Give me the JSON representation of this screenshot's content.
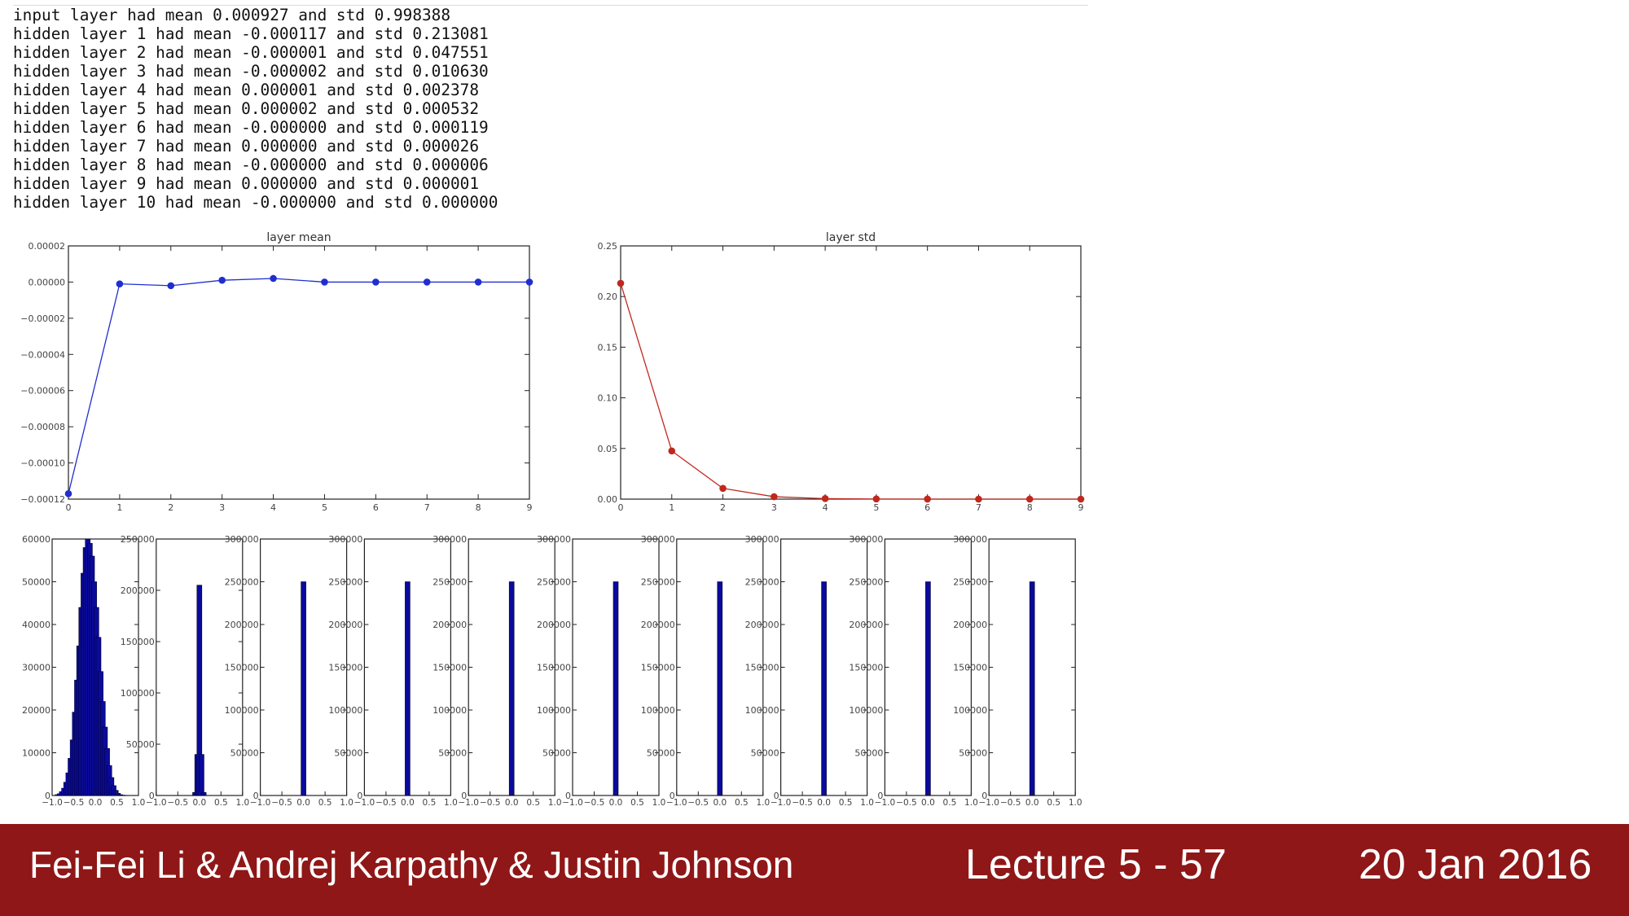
{
  "console": {
    "lines": [
      "input layer had mean 0.000927 and std 0.998388",
      "hidden layer 1 had mean -0.000117 and std 0.213081",
      "hidden layer 2 had mean -0.000001 and std 0.047551",
      "hidden layer 3 had mean -0.000002 and std 0.010630",
      "hidden layer 4 had mean 0.000001 and std 0.002378",
      "hidden layer 5 had mean 0.000002 and std 0.000532",
      "hidden layer 6 had mean -0.000000 and std 0.000119",
      "hidden layer 7 had mean 0.000000 and std 0.000026",
      "hidden layer 8 had mean -0.000000 and std 0.000006",
      "hidden layer 9 had mean 0.000000 and std 0.000001",
      "hidden layer 10 had mean -0.000000 and std 0.000000"
    ]
  },
  "chart_data": [
    {
      "type": "line",
      "title": "layer mean",
      "color": "#1f2fcf",
      "x": [
        0,
        1,
        2,
        3,
        4,
        5,
        6,
        7,
        8,
        9
      ],
      "y": [
        -0.000117,
        -1e-06,
        -2e-06,
        1e-06,
        2e-06,
        0.0,
        0.0,
        0.0,
        0.0,
        0.0
      ],
      "xlim": [
        0,
        9
      ],
      "ylim": [
        -0.00012,
        2e-05
      ],
      "xticks": [
        "0",
        "1",
        "2",
        "3",
        "4",
        "5",
        "6",
        "7",
        "8",
        "9"
      ],
      "yticks": [
        "0.00002",
        "0.00000",
        "−0.00002",
        "−0.00004",
        "−0.00006",
        "−0.00008",
        "−0.00010",
        "−0.00012"
      ],
      "ytick_values": [
        2e-05,
        0.0,
        -2e-05,
        -4e-05,
        -6e-05,
        -8e-05,
        -0.0001,
        -0.00012
      ]
    },
    {
      "type": "line",
      "title": "layer std",
      "color": "#c0281e",
      "x": [
        0,
        1,
        2,
        3,
        4,
        5,
        6,
        7,
        8,
        9
      ],
      "y": [
        0.213081,
        0.047551,
        0.01063,
        0.002378,
        0.000532,
        0.000119,
        2.6e-05,
        6e-06,
        1e-06,
        0.0
      ],
      "xlim": [
        0,
        9
      ],
      "ylim": [
        0,
        0.25
      ],
      "xticks": [
        "0",
        "1",
        "2",
        "3",
        "4",
        "5",
        "6",
        "7",
        "8",
        "9"
      ],
      "yticks": [
        "0.25",
        "0.20",
        "0.15",
        "0.10",
        "0.05",
        "0.00"
      ],
      "ytick_values": [
        0.25,
        0.2,
        0.15,
        0.1,
        0.05,
        0.0
      ]
    },
    {
      "type": "bar",
      "subtype": "histograms",
      "color": "#0a0a9c",
      "xlim": [
        -1.0,
        1.0
      ],
      "xticks": [
        "−1.0",
        "−0.5",
        "0.0",
        "0.5",
        "1.0"
      ],
      "panels": [
        {
          "name": "hidden layer 1",
          "ylim": [
            0,
            60000
          ],
          "yticks": [
            "60000",
            "50000",
            "40000",
            "30000",
            "20000",
            "10000",
            "0"
          ],
          "ytick_values": [
            60000,
            50000,
            40000,
            30000,
            20000,
            10000,
            0
          ],
          "bins": [
            -0.875,
            -0.825,
            -0.775,
            -0.725,
            -0.675,
            -0.625,
            -0.575,
            -0.525,
            -0.475,
            -0.425,
            -0.375,
            -0.325,
            -0.275,
            -0.225,
            -0.175,
            -0.125,
            -0.075,
            -0.025,
            0.025,
            0.075,
            0.125,
            0.175,
            0.225,
            0.275,
            0.325,
            0.375,
            0.425,
            0.475,
            0.525,
            0.575,
            0.625,
            0.675
          ],
          "bin_width": 0.05,
          "values": [
            200,
            400,
            900,
            1700,
            3100,
            5300,
            8700,
            13000,
            19500,
            27000,
            35000,
            44000,
            52000,
            58000,
            60000,
            59000,
            56000,
            50000,
            44000,
            37000,
            29000,
            22000,
            16000,
            11000,
            7000,
            4200,
            2300,
            1200,
            500,
            200,
            80,
            30
          ]
        },
        {
          "name": "hidden layer 2",
          "ylim": [
            0,
            250000
          ],
          "yticks": [
            "250000",
            "200000",
            "150000",
            "100000",
            "50000",
            "0"
          ],
          "ytick_values": [
            250000,
            200000,
            150000,
            100000,
            50000,
            0
          ],
          "bins": [
            -0.1,
            -0.05,
            0.0,
            0.05,
            0.1
          ],
          "bin_width": 0.05,
          "values": [
            3000,
            40000,
            205000,
            40000,
            3000
          ]
        },
        {
          "name": "hidden layer 3",
          "ylim": [
            0,
            300000
          ],
          "yticks": [
            "300000",
            "250000",
            "200000",
            "150000",
            "100000",
            "50000",
            "0"
          ],
          "ytick_values": [
            300000,
            250000,
            200000,
            150000,
            100000,
            50000,
            0
          ],
          "bins": [
            0.0
          ],
          "bin_width": 0.05,
          "values": [
            250000
          ]
        },
        {
          "name": "hidden layer 4",
          "ylim": [
            0,
            300000
          ],
          "yticks": [
            "300000",
            "250000",
            "200000",
            "150000",
            "100000",
            "50000",
            "0"
          ],
          "ytick_values": [
            300000,
            250000,
            200000,
            150000,
            100000,
            50000,
            0
          ],
          "bins": [
            0.0
          ],
          "bin_width": 0.05,
          "values": [
            250000
          ]
        },
        {
          "name": "hidden layer 5",
          "ylim": [
            0,
            300000
          ],
          "yticks": [
            "300000",
            "250000",
            "200000",
            "150000",
            "100000",
            "50000",
            "0"
          ],
          "ytick_values": [
            300000,
            250000,
            200000,
            150000,
            100000,
            50000,
            0
          ],
          "bins": [
            0.0
          ],
          "bin_width": 0.05,
          "values": [
            250000
          ]
        },
        {
          "name": "hidden layer 6",
          "ylim": [
            0,
            300000
          ],
          "yticks": [
            "300000",
            "250000",
            "200000",
            "150000",
            "100000",
            "50000",
            "0"
          ],
          "ytick_values": [
            300000,
            250000,
            200000,
            150000,
            100000,
            50000,
            0
          ],
          "bins": [
            0.0
          ],
          "bin_width": 0.05,
          "values": [
            250000
          ]
        },
        {
          "name": "hidden layer 7",
          "ylim": [
            0,
            300000
          ],
          "yticks": [
            "300000",
            "250000",
            "200000",
            "150000",
            "100000",
            "50000",
            "0"
          ],
          "ytick_values": [
            300000,
            250000,
            200000,
            150000,
            100000,
            50000,
            0
          ],
          "bins": [
            0.0
          ],
          "bin_width": 0.05,
          "values": [
            250000
          ]
        },
        {
          "name": "hidden layer 8",
          "ylim": [
            0,
            300000
          ],
          "yticks": [
            "300000",
            "250000",
            "200000",
            "150000",
            "100000",
            "50000",
            "0"
          ],
          "ytick_values": [
            300000,
            250000,
            200000,
            150000,
            100000,
            50000,
            0
          ],
          "bins": [
            0.0
          ],
          "bin_width": 0.05,
          "values": [
            250000
          ]
        },
        {
          "name": "hidden layer 9",
          "ylim": [
            0,
            300000
          ],
          "yticks": [
            "300000",
            "250000",
            "200000",
            "150000",
            "100000",
            "50000",
            "0"
          ],
          "ytick_values": [
            300000,
            250000,
            200000,
            150000,
            100000,
            50000,
            0
          ],
          "bins": [
            0.0
          ],
          "bin_width": 0.05,
          "values": [
            250000
          ]
        },
        {
          "name": "hidden layer 10",
          "ylim": [
            0,
            300000
          ],
          "yticks": [
            "300000",
            "250000",
            "200000",
            "150000",
            "100000",
            "50000",
            "0"
          ],
          "ytick_values": [
            300000,
            250000,
            200000,
            150000,
            100000,
            50000,
            0
          ],
          "bins": [
            0.0
          ],
          "bin_width": 0.05,
          "values": [
            250000
          ]
        }
      ]
    }
  ],
  "footer": {
    "authors": "Fei-Fei Li & Andrej Karpathy & Justin Johnson",
    "lecture": "Lecture 5 - 57",
    "date": "20 Jan 2016",
    "background": "#8f1717"
  }
}
